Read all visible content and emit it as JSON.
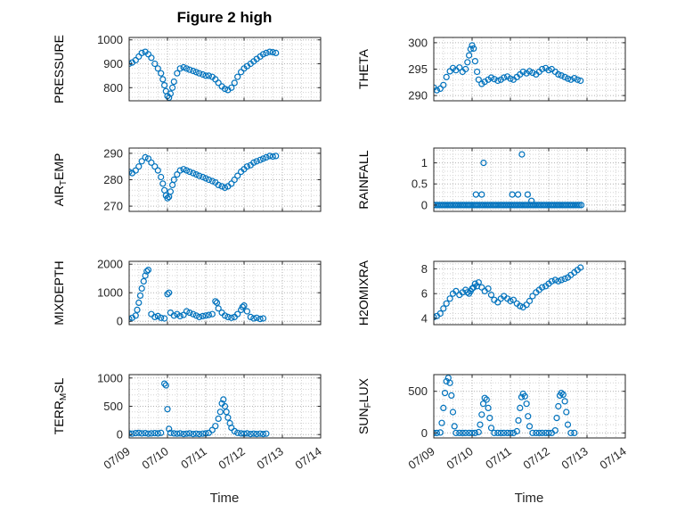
{
  "figure": {
    "title": "Figure 2 high",
    "marker_color": "#0072BD",
    "background": "#ffffff"
  },
  "x_axis": {
    "label": "Time",
    "lim": [
      0,
      5
    ],
    "ticks": [
      0,
      1,
      2,
      3,
      4,
      5
    ],
    "tick_labels": [
      "07/09",
      "07/10",
      "07/11",
      "07/12",
      "07/13",
      "07/14"
    ]
  },
  "chart_data": [
    {
      "type": "scatter",
      "name": "pressure",
      "ylabel": "PRESSURE",
      "ylim": [
        745,
        1010
      ],
      "yticks": [
        800,
        900,
        1000
      ],
      "x": [
        0,
        0.08,
        0.17,
        0.25,
        0.33,
        0.42,
        0.5,
        0.58,
        0.67,
        0.75,
        0.83,
        0.88,
        0.92,
        0.96,
        1,
        1.04,
        1.08,
        1.13,
        1.17,
        1.25,
        1.33,
        1.42,
        1.5,
        1.58,
        1.67,
        1.75,
        1.83,
        1.92,
        2,
        2.08,
        2.17,
        2.25,
        2.33,
        2.42,
        2.5,
        2.58,
        2.67,
        2.75,
        2.83,
        2.92,
        3,
        3.08,
        3.17,
        3.25,
        3.33,
        3.42,
        3.5,
        3.58,
        3.67,
        3.75,
        3.83
      ],
      "y": [
        900,
        905,
        915,
        930,
        945,
        950,
        940,
        925,
        900,
        880,
        860,
        835,
        810,
        785,
        765,
        758,
        775,
        800,
        825,
        860,
        880,
        885,
        880,
        875,
        870,
        865,
        860,
        855,
        850,
        850,
        845,
        835,
        820,
        805,
        795,
        790,
        800,
        820,
        845,
        865,
        880,
        890,
        900,
        910,
        920,
        930,
        940,
        945,
        950,
        948,
        945
      ]
    },
    {
      "type": "scatter",
      "name": "theta",
      "ylabel": "THETA",
      "ylim": [
        289,
        301
      ],
      "yticks": [
        290,
        295,
        300
      ],
      "x": [
        0,
        0.08,
        0.17,
        0.25,
        0.33,
        0.42,
        0.5,
        0.58,
        0.67,
        0.75,
        0.83,
        0.88,
        0.92,
        0.96,
        1,
        1.04,
        1.08,
        1.13,
        1.17,
        1.25,
        1.33,
        1.42,
        1.5,
        1.58,
        1.67,
        1.75,
        1.83,
        1.92,
        2,
        2.08,
        2.17,
        2.25,
        2.33,
        2.42,
        2.5,
        2.58,
        2.67,
        2.75,
        2.83,
        2.92,
        3,
        3.08,
        3.17,
        3.25,
        3.33,
        3.42,
        3.5,
        3.58,
        3.67,
        3.75,
        3.83
      ],
      "y": [
        291.5,
        291,
        291.3,
        292,
        293.5,
        294.6,
        295.2,
        294.8,
        295.3,
        294.5,
        295,
        296.3,
        297.6,
        298.8,
        299.5,
        298.9,
        296.5,
        294.5,
        293,
        292.2,
        292.6,
        293,
        293.4,
        293.1,
        292.8,
        293,
        293.4,
        293.6,
        293.2,
        293,
        293.5,
        294,
        294.5,
        294.2,
        294.6,
        294.3,
        294,
        294.5,
        295,
        295.2,
        294.8,
        295,
        294.5,
        294,
        293.8,
        293.5,
        293.2,
        293,
        293.3,
        293,
        292.8
      ]
    },
    {
      "type": "scatter",
      "name": "air-temp",
      "ylabel": "AIR_TEMP",
      "ylim": [
        268,
        292
      ],
      "yticks": [
        270,
        280,
        290
      ],
      "x": [
        0,
        0.08,
        0.17,
        0.25,
        0.33,
        0.42,
        0.5,
        0.58,
        0.67,
        0.75,
        0.83,
        0.88,
        0.92,
        0.96,
        1,
        1.04,
        1.08,
        1.13,
        1.17,
        1.25,
        1.33,
        1.42,
        1.5,
        1.58,
        1.67,
        1.75,
        1.83,
        1.92,
        2,
        2.08,
        2.17,
        2.25,
        2.33,
        2.42,
        2.5,
        2.58,
        2.67,
        2.75,
        2.83,
        2.92,
        3,
        3.08,
        3.17,
        3.25,
        3.33,
        3.42,
        3.5,
        3.58,
        3.67,
        3.75,
        3.83
      ],
      "y": [
        283,
        282.5,
        283.5,
        285,
        287,
        288.5,
        288,
        286.5,
        285,
        283.5,
        281,
        278.5,
        276,
        274,
        273,
        273.5,
        275.5,
        278,
        280,
        282,
        283.5,
        284,
        283.5,
        283,
        282.5,
        282,
        281.5,
        281,
        280.5,
        280,
        279.5,
        279,
        278,
        277.5,
        277,
        277.5,
        278.5,
        280,
        281.5,
        283,
        284,
        285,
        285.5,
        286.5,
        287,
        287.5,
        288,
        288.5,
        289,
        288.8,
        289
      ]
    },
    {
      "type": "scatter",
      "name": "rainfall",
      "ylabel": "RAINFALL",
      "ylim": [
        -0.15,
        1.35
      ],
      "yticks": [
        0,
        0.5,
        1
      ],
      "x": [
        0,
        0.05,
        0.1,
        0.15,
        0.2,
        0.25,
        0.3,
        0.35,
        0.4,
        0.45,
        0.5,
        0.55,
        0.6,
        0.65,
        0.7,
        0.75,
        0.8,
        0.85,
        0.9,
        0.95,
        1,
        1.05,
        1.1,
        1.15,
        1.2,
        1.25,
        1.3,
        1.35,
        1.4,
        1.45,
        1.5,
        1.55,
        1.6,
        1.65,
        1.7,
        1.75,
        1.8,
        1.85,
        1.9,
        1.95,
        2,
        2.05,
        2.1,
        2.15,
        2.2,
        2.25,
        2.3,
        2.35,
        2.4,
        2.45,
        2.5,
        2.55,
        2.6,
        2.65,
        2.7,
        2.75,
        2.8,
        2.85,
        2.9,
        2.95,
        3,
        3.05,
        3.1,
        3.15,
        3.2,
        3.25,
        3.3,
        3.35,
        3.4,
        3.45,
        3.5,
        3.55,
        3.6,
        3.65,
        3.7,
        3.75,
        3.8,
        3.85,
        1.1,
        1.25,
        1.3,
        2.05,
        2.2,
        2.3,
        2.45,
        2.55
      ],
      "y": [
        0,
        0,
        0,
        0,
        0,
        0,
        0,
        0,
        0,
        0,
        0,
        0,
        0,
        0,
        0,
        0,
        0,
        0,
        0,
        0,
        0,
        0,
        0,
        0,
        0,
        0,
        0,
        0,
        0,
        0,
        0,
        0,
        0,
        0,
        0,
        0,
        0,
        0,
        0,
        0,
        0,
        0,
        0,
        0,
        0,
        0,
        0,
        0,
        0,
        0,
        0,
        0,
        0,
        0,
        0,
        0,
        0,
        0,
        0,
        0,
        0,
        0,
        0,
        0,
        0,
        0,
        0,
        0,
        0,
        0,
        0,
        0,
        0,
        0,
        0,
        0,
        0,
        0,
        0.25,
        0.25,
        1,
        0.25,
        0.25,
        1.2,
        0.25,
        0.1
      ]
    },
    {
      "type": "scatter",
      "name": "mixdepth",
      "ylabel": "MIXDEPTH",
      "ylim": [
        -120,
        2100
      ],
      "yticks": [
        0,
        1000,
        2000
      ],
      "x": [
        0,
        0.08,
        0.17,
        0.21,
        0.25,
        0.29,
        0.33,
        0.38,
        0.42,
        0.46,
        0.5,
        0.58,
        0.67,
        0.75,
        0.83,
        0.92,
        1,
        1.04,
        1.08,
        1.17,
        1.25,
        1.33,
        1.42,
        1.5,
        1.58,
        1.67,
        1.75,
        1.83,
        1.92,
        2,
        2.08,
        2.17,
        2.25,
        2.29,
        2.33,
        2.42,
        2.5,
        2.58,
        2.67,
        2.75,
        2.83,
        2.92,
        2.96,
        3,
        3.08,
        3.17,
        3.25,
        3.33,
        3.42,
        3.5
      ],
      "y": [
        80,
        120,
        200,
        400,
        650,
        900,
        1150,
        1400,
        1600,
        1750,
        1800,
        250,
        150,
        180,
        120,
        100,
        950,
        1000,
        300,
        200,
        250,
        180,
        220,
        350,
        300,
        250,
        200,
        150,
        180,
        200,
        220,
        250,
        700,
        650,
        450,
        300,
        200,
        150,
        120,
        150,
        250,
        400,
        500,
        550,
        350,
        150,
        100,
        120,
        80,
        100
      ]
    },
    {
      "type": "scatter",
      "name": "h2omixra",
      "ylabel": "H2OMIXRA",
      "ylim": [
        3.5,
        8.6
      ],
      "yticks": [
        4,
        6,
        8
      ],
      "x": [
        0,
        0.08,
        0.17,
        0.25,
        0.33,
        0.42,
        0.5,
        0.58,
        0.67,
        0.75,
        0.83,
        0.88,
        0.92,
        0.96,
        1,
        1.04,
        1.08,
        1.13,
        1.17,
        1.25,
        1.33,
        1.42,
        1.5,
        1.58,
        1.67,
        1.75,
        1.83,
        1.92,
        2,
        2.08,
        2.17,
        2.25,
        2.33,
        2.42,
        2.5,
        2.58,
        2.67,
        2.75,
        2.83,
        2.92,
        3,
        3.08,
        3.17,
        3.25,
        3.33,
        3.42,
        3.5,
        3.58,
        3.67,
        3.75,
        3.83
      ],
      "y": [
        4.1,
        4.2,
        4.4,
        4.8,
        5.2,
        5.6,
        6,
        6.2,
        5.9,
        6.1,
        6.3,
        6.1,
        6,
        6.2,
        6.4,
        6.5,
        6.8,
        6.6,
        6.9,
        6.5,
        6.2,
        6.4,
        5.9,
        5.5,
        5.3,
        5.6,
        5.8,
        5.6,
        5.4,
        5.5,
        5.2,
        5,
        4.9,
        5.1,
        5.4,
        5.8,
        6.1,
        6.3,
        6.5,
        6.6,
        6.8,
        7,
        7.1,
        7,
        7.1,
        7.2,
        7.3,
        7.5,
        7.7,
        7.9,
        8.1
      ]
    },
    {
      "type": "scatter",
      "name": "terr-msl",
      "ylabel": "TERR_MSL",
      "ylim": [
        -60,
        1060
      ],
      "yticks": [
        0,
        500,
        1000
      ],
      "x": [
        0,
        0.08,
        0.17,
        0.25,
        0.33,
        0.42,
        0.5,
        0.58,
        0.67,
        0.75,
        0.83,
        0.92,
        0.96,
        1,
        1.04,
        1.08,
        1.17,
        1.25,
        1.33,
        1.42,
        1.5,
        1.58,
        1.67,
        1.75,
        1.83,
        1.92,
        2,
        2.08,
        2.17,
        2.25,
        2.33,
        2.38,
        2.42,
        2.46,
        2.5,
        2.54,
        2.58,
        2.63,
        2.67,
        2.75,
        2.83,
        2.92,
        3,
        3.08,
        3.17,
        3.25,
        3.33,
        3.42,
        3.5,
        3.58
      ],
      "y": [
        20,
        15,
        25,
        30,
        20,
        25,
        15,
        20,
        25,
        20,
        30,
        900,
        870,
        450,
        100,
        30,
        20,
        15,
        20,
        10,
        15,
        20,
        10,
        15,
        10,
        15,
        20,
        30,
        80,
        150,
        280,
        400,
        550,
        620,
        500,
        400,
        300,
        200,
        120,
        60,
        30,
        20,
        15,
        20,
        10,
        15,
        10,
        15,
        10,
        15
      ]
    },
    {
      "type": "scatter",
      "name": "sun-flux",
      "ylabel": "SUN_FLUX",
      "ylim": [
        -60,
        700
      ],
      "yticks": [
        0,
        500
      ],
      "x": [
        0,
        0.08,
        0.17,
        0.21,
        0.25,
        0.29,
        0.33,
        0.38,
        0.42,
        0.46,
        0.5,
        0.54,
        0.58,
        0.67,
        0.75,
        0.83,
        0.92,
        1,
        1.08,
        1.17,
        1.21,
        1.25,
        1.29,
        1.33,
        1.38,
        1.42,
        1.46,
        1.5,
        1.58,
        1.67,
        1.75,
        1.83,
        1.92,
        2,
        2.08,
        2.17,
        2.21,
        2.25,
        2.29,
        2.33,
        2.38,
        2.42,
        2.46,
        2.5,
        2.58,
        2.67,
        2.75,
        2.83,
        2.92,
        3,
        3.08,
        3.17,
        3.21,
        3.25,
        3.29,
        3.33,
        3.38,
        3.42,
        3.46,
        3.5,
        3.58,
        3.67
      ],
      "y": [
        0,
        0,
        5,
        120,
        300,
        480,
        620,
        660,
        600,
        450,
        250,
        80,
        0,
        0,
        0,
        0,
        0,
        0,
        0,
        10,
        100,
        220,
        350,
        420,
        400,
        300,
        180,
        60,
        0,
        0,
        0,
        0,
        0,
        0,
        0,
        20,
        150,
        300,
        430,
        470,
        440,
        350,
        200,
        80,
        0,
        0,
        0,
        0,
        0,
        0,
        0,
        30,
        180,
        320,
        450,
        480,
        460,
        380,
        250,
        100,
        0,
        0
      ]
    }
  ]
}
